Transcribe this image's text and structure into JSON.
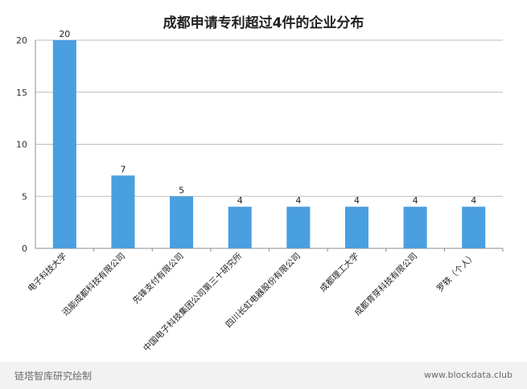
{
  "chart_data": {
    "type": "bar",
    "title": "成都申请专利超过4件的企业分布",
    "categories": [
      "电子科技大学",
      "迅能成都科技有限公司",
      "先锋支付有限公司",
      "中国电子科技集团公司第三十研究所",
      "四川长虹电器股份有限公司",
      "成都理工大学",
      "成都育芽科技有限公司",
      "罗轶（个人）"
    ],
    "values": [
      20,
      7,
      5,
      4,
      4,
      4,
      4,
      4
    ],
    "ylim": [
      0,
      20
    ],
    "yticks": [
      0,
      5,
      10,
      15,
      20
    ],
    "grid": true,
    "bar_color": "#4a9fe0",
    "data_labels": true
  },
  "footer": {
    "left": "链塔智库研究绘制",
    "right": "www.blockdata.club"
  },
  "colors": {
    "bar": "#4a9fe0",
    "grid": "#bdbdbd",
    "footer_bg": "#f2f2f2"
  }
}
